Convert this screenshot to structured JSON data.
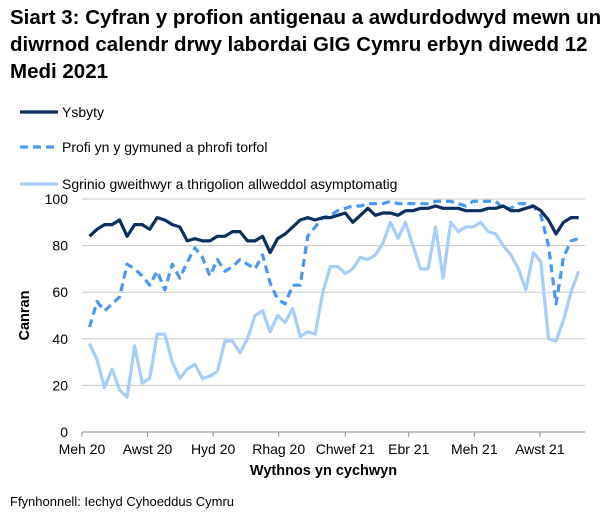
{
  "chart_data": {
    "type": "line",
    "title": "Siart 3: Cyfran y profion antigenau a awdurdodwyd mewn un diwrnod calendr drwy labordai GIG Cymru erbyn diwedd 12 Medi 2021",
    "xlabel": "Wythnos yn cychwyn",
    "ylabel": "Canran",
    "ylim": [
      0,
      100
    ],
    "yticks": [
      0,
      20,
      40,
      60,
      80,
      100
    ],
    "grid": true,
    "legend_placement": "top-left",
    "xticks": [
      {
        "date": "2020-06-01",
        "label": "Meh 20"
      },
      {
        "date": "2020-08-01",
        "label": "Awst 20"
      },
      {
        "date": "2020-10-01",
        "label": "Hyd 20"
      },
      {
        "date": "2020-12-01",
        "label": "Rhag 20"
      },
      {
        "date": "2021-02-01",
        "label": "Chwef 21"
      },
      {
        "date": "2021-04-01",
        "label": "Ebr 21"
      },
      {
        "date": "2021-06-01",
        "label": "Meh 21"
      },
      {
        "date": "2021-08-01",
        "label": "Awst 21"
      }
    ],
    "x": [
      "2020-06-08",
      "2020-06-15",
      "2020-06-22",
      "2020-06-29",
      "2020-07-06",
      "2020-07-13",
      "2020-07-20",
      "2020-07-27",
      "2020-08-03",
      "2020-08-10",
      "2020-08-17",
      "2020-08-24",
      "2020-08-31",
      "2020-09-07",
      "2020-09-14",
      "2020-09-21",
      "2020-09-28",
      "2020-10-05",
      "2020-10-12",
      "2020-10-19",
      "2020-10-26",
      "2020-11-02",
      "2020-11-09",
      "2020-11-16",
      "2020-11-23",
      "2020-11-30",
      "2020-12-07",
      "2020-12-14",
      "2020-12-21",
      "2020-12-28",
      "2021-01-04",
      "2021-01-11",
      "2021-01-18",
      "2021-01-25",
      "2021-02-01",
      "2021-02-08",
      "2021-02-15",
      "2021-02-22",
      "2021-03-01",
      "2021-03-08",
      "2021-03-15",
      "2021-03-22",
      "2021-03-29",
      "2021-04-05",
      "2021-04-12",
      "2021-04-19",
      "2021-04-26",
      "2021-05-03",
      "2021-05-10",
      "2021-05-17",
      "2021-05-24",
      "2021-05-31",
      "2021-06-07",
      "2021-06-14",
      "2021-06-21",
      "2021-06-28",
      "2021-07-05",
      "2021-07-12",
      "2021-07-19",
      "2021-07-26",
      "2021-08-02",
      "2021-08-09",
      "2021-08-16",
      "2021-08-23",
      "2021-08-30",
      "2021-09-06"
    ],
    "series": [
      {
        "name": "Ysbyty",
        "color": "#0b2f5e",
        "style": "solid",
        "values": [
          84,
          87,
          89,
          89,
          91,
          84,
          89,
          89,
          87,
          92,
          91,
          89,
          88,
          82,
          83,
          82,
          82,
          84,
          84,
          86,
          86,
          82,
          82,
          84,
          77,
          83,
          85,
          88,
          91,
          92,
          91,
          92,
          92,
          93,
          94,
          90,
          93,
          96,
          93,
          94,
          94,
          93,
          95,
          95,
          96,
          96,
          97,
          96,
          96,
          96,
          95,
          95,
          95,
          96,
          96,
          97,
          95,
          95,
          96,
          97,
          95,
          91,
          85,
          90,
          92,
          92
        ]
      },
      {
        "name": "Profi yn y gymuned a phrofi torfol",
        "color": "#4a98f0",
        "style": "dashed",
        "values": [
          45,
          56,
          52,
          55,
          58,
          72,
          70,
          67,
          63,
          69,
          61,
          72,
          66,
          73,
          79,
          75,
          67,
          74,
          69,
          71,
          74,
          72,
          70,
          76,
          64,
          57,
          55,
          63,
          63,
          84,
          88,
          92,
          93,
          95,
          96,
          97,
          97,
          98,
          98,
          98,
          99,
          98,
          98,
          98,
          98,
          98,
          99,
          99,
          99,
          98,
          97,
          99,
          99,
          99,
          99,
          96,
          96,
          98,
          98,
          97,
          93,
          80,
          55,
          75,
          82,
          83
        ]
      },
      {
        "name": "Sgrinio gweithwyr a thrigolion allweddol asymptomatig",
        "color": "#a7cdf9",
        "style": "solid",
        "values": [
          38,
          31,
          19,
          27,
          18,
          15,
          37,
          21,
          23,
          42,
          42,
          30,
          23,
          27,
          29,
          23,
          24,
          26,
          39,
          39,
          34,
          40,
          50,
          52,
          43,
          50,
          47,
          53,
          41,
          43,
          42,
          60,
          71,
          71,
          68,
          70,
          75,
          74,
          76,
          81,
          90,
          83,
          90,
          80,
          70,
          70,
          88,
          66,
          90,
          86,
          88,
          88,
          90,
          86,
          85,
          80,
          76,
          70,
          61,
          77,
          73,
          40,
          39,
          48,
          60,
          69
        ]
      }
    ]
  },
  "source": "Ffynhonnell: Iechyd Cyhoeddus Cymru"
}
